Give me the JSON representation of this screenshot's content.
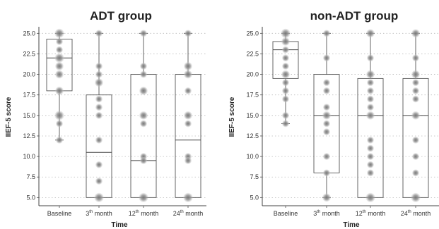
{
  "chart_data": [
    {
      "type": "box",
      "title": "ADT group",
      "xlabel": "Time",
      "ylabel": "IIEF-5 score",
      "ylim": [
        4,
        25.8
      ],
      "yticks": [
        "5.0",
        "7.5",
        "10.0",
        "12.5",
        "15.0",
        "17.5",
        "20.0",
        "22.5",
        "25.0"
      ],
      "grid": "horizontal dotted",
      "categories": [
        {
          "main": "Baseline",
          "sup": "",
          "rest": ""
        },
        {
          "main": "3",
          "sup": "th",
          "rest": " month"
        },
        {
          "main": "12",
          "sup": "th",
          "rest": " month"
        },
        {
          "main": "24",
          "sup": "th",
          "rest": " month"
        }
      ],
      "boxes": [
        {
          "whisker_low": 12,
          "q1": 18,
          "median": 22,
          "q3": 24.3,
          "whisker_high": 25
        },
        {
          "whisker_low": 5,
          "q1": 5,
          "median": 10.5,
          "q3": 17.5,
          "whisker_high": 25
        },
        {
          "whisker_low": 5,
          "q1": 5,
          "median": 9.5,
          "q3": 20,
          "whisker_high": 25
        },
        {
          "whisker_low": 5,
          "q1": 5,
          "median": 12,
          "q3": 20,
          "whisker_high": 25
        }
      ],
      "points": [
        [
          [
            25,
            3
          ],
          [
            24,
            1
          ],
          [
            23,
            1
          ],
          [
            22,
            3
          ],
          [
            21,
            2
          ],
          [
            20,
            2
          ],
          [
            18,
            2
          ],
          [
            15,
            3
          ],
          [
            14,
            1
          ],
          [
            12,
            1
          ]
        ],
        [
          [
            25,
            1
          ],
          [
            21,
            1
          ],
          [
            20,
            1
          ],
          [
            19,
            2
          ],
          [
            17,
            1
          ],
          [
            16,
            1
          ],
          [
            15,
            1
          ],
          [
            12,
            1
          ],
          [
            9,
            1
          ],
          [
            7,
            1
          ],
          [
            5,
            3
          ]
        ],
        [
          [
            25,
            1
          ],
          [
            21,
            1
          ],
          [
            20,
            1
          ],
          [
            18,
            2
          ],
          [
            15,
            2
          ],
          [
            14,
            1
          ],
          [
            10,
            1
          ],
          [
            9.5,
            1
          ],
          [
            5,
            3
          ]
        ],
        [
          [
            25,
            1
          ],
          [
            21,
            2
          ],
          [
            20,
            2
          ],
          [
            18,
            1
          ],
          [
            15,
            2
          ],
          [
            14,
            1
          ],
          [
            10,
            1
          ],
          [
            9.5,
            1
          ],
          [
            5,
            3
          ]
        ]
      ]
    },
    {
      "type": "box",
      "title": "non-ADT group",
      "xlabel": "Time",
      "ylabel": "IIEF-5 score",
      "ylim": [
        4,
        25.8
      ],
      "yticks": [
        "5.0",
        "7.5",
        "10.0",
        "12.5",
        "15.0",
        "17.5",
        "20.0",
        "22.5",
        "25.0"
      ],
      "grid": "horizontal dotted",
      "categories": [
        {
          "main": "Baseline",
          "sup": "",
          "rest": ""
        },
        {
          "main": "3",
          "sup": "th",
          "rest": " month"
        },
        {
          "main": "12",
          "sup": "th",
          "rest": " month"
        },
        {
          "main": "24",
          "sup": "th",
          "rest": " month"
        }
      ],
      "boxes": [
        {
          "whisker_low": 14,
          "q1": 19.5,
          "median": 23,
          "q3": 24,
          "whisker_high": 25
        },
        {
          "whisker_low": 5,
          "q1": 8,
          "median": 15,
          "q3": 20,
          "whisker_high": 25
        },
        {
          "whisker_low": 5,
          "q1": 5,
          "median": 15,
          "q3": 19.5,
          "whisker_high": 25
        },
        {
          "whisker_low": 5,
          "q1": 5,
          "median": 15,
          "q3": 19.5,
          "whisker_high": 25
        }
      ],
      "points": [
        [
          [
            25,
            3
          ],
          [
            24,
            2
          ],
          [
            23,
            1
          ],
          [
            22,
            1
          ],
          [
            21,
            1
          ],
          [
            20,
            2
          ],
          [
            19,
            1
          ],
          [
            18,
            1
          ],
          [
            17,
            1
          ],
          [
            15,
            1
          ],
          [
            14,
            1
          ]
        ],
        [
          [
            25,
            1
          ],
          [
            22,
            1
          ],
          [
            19,
            1
          ],
          [
            18,
            1
          ],
          [
            16,
            1
          ],
          [
            15,
            2
          ],
          [
            14,
            1
          ],
          [
            13,
            1
          ],
          [
            10,
            1
          ],
          [
            8,
            1
          ],
          [
            5,
            2
          ]
        ],
        [
          [
            25,
            2
          ],
          [
            22,
            1
          ],
          [
            20,
            2
          ],
          [
            19,
            1
          ],
          [
            18,
            1
          ],
          [
            17,
            1
          ],
          [
            16,
            1
          ],
          [
            15,
            2
          ],
          [
            12,
            1
          ],
          [
            11,
            1
          ],
          [
            10,
            1
          ],
          [
            9,
            1
          ],
          [
            8,
            1
          ],
          [
            5,
            3
          ]
        ],
        [
          [
            25,
            2
          ],
          [
            22,
            1
          ],
          [
            20,
            2
          ],
          [
            19,
            1
          ],
          [
            18,
            1
          ],
          [
            17,
            1
          ],
          [
            15,
            2
          ],
          [
            12,
            1
          ],
          [
            10,
            1
          ],
          [
            8,
            1
          ],
          [
            5,
            3
          ]
        ]
      ]
    }
  ]
}
